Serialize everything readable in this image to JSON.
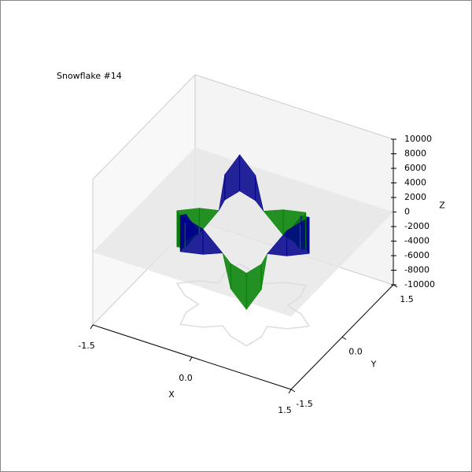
{
  "chart_data": {
    "type": "surface3d",
    "title": "Snowflake #14",
    "x_label": "X",
    "y_label": "Y",
    "z_label": "Z",
    "xlim": [
      -1.5,
      1.5
    ],
    "xticks": [
      -1.5,
      {
        "value": 0,
        "label": "0.0"
      },
      1.5
    ],
    "ylim": [
      -1.5,
      1.5
    ],
    "yticks": [
      -1.5,
      {
        "value": 0,
        "label": "0.0"
      },
      1.5
    ],
    "zlim": [
      -10000,
      10000
    ],
    "zticks": [
      -10000,
      -8000,
      -6000,
      -4000,
      -2000,
      0,
      2000,
      4000,
      6000,
      8000,
      10000
    ],
    "color": "#00008b",
    "negative_color": "#008000",
    "x": [
      1.0,
      0.77,
      0.52,
      0.57,
      0.5,
      0.21,
      0,
      -0.21,
      -0.5,
      -0.57,
      -0.52,
      -0.77,
      -1.0,
      -0.77,
      -0.52,
      -0.57,
      -0.5,
      -0.21,
      0,
      0.21,
      0.5,
      0.57,
      0.52,
      0.77
    ],
    "y": [
      0,
      0.21,
      0.3,
      0.57,
      0.87,
      0.77,
      0.6,
      0.77,
      0.87,
      0.57,
      0.3,
      0.21,
      0,
      -0.21,
      -0.3,
      -0.57,
      -0.87,
      -0.77,
      -0.6,
      -0.77,
      -0.87,
      -0.57,
      -0.3,
      -0.21
    ],
    "z": [
      5000,
      3500,
      0,
      -3500,
      -5000,
      -3500,
      0,
      3500,
      5000,
      3500,
      0,
      -3500,
      -5000,
      -3500,
      0,
      3500,
      5000,
      3500,
      0,
      -3500,
      -5000,
      -3500,
      0,
      3500
    ]
  }
}
